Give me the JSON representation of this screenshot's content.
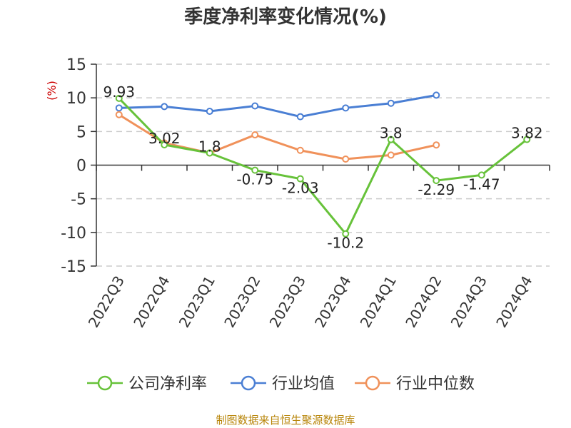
{
  "chart_data": {
    "type": "line",
    "title": "季度净利率变化情况(%)",
    "ylabel": "(%)",
    "ylim": [
      -15,
      15
    ],
    "yticks": [
      15,
      10,
      5,
      0,
      -5,
      -10,
      -15
    ],
    "grid": true,
    "legend_position": "bottom",
    "categories": [
      "2022Q3",
      "2022Q4",
      "2023Q1",
      "2023Q2",
      "2023Q3",
      "2023Q4",
      "2024Q1",
      "2024Q2",
      "2024Q3",
      "2024Q4"
    ],
    "series": [
      {
        "name": "公司净利率",
        "color": "#67c23a",
        "values": [
          9.93,
          3.02,
          1.8,
          -0.75,
          -2.03,
          -10.2,
          3.8,
          -2.29,
          -1.47,
          3.82
        ],
        "labels": [
          "9.93",
          "3.02",
          "1.8",
          "-0.75",
          "-2.03",
          "-10.2",
          "3.8",
          "-2.29",
          "-1.47",
          "3.82"
        ]
      },
      {
        "name": "行业均值",
        "color": "#4a7fd4",
        "values": [
          8.5,
          8.7,
          8.0,
          8.8,
          7.2,
          8.5,
          9.2,
          10.4,
          null,
          null
        ]
      },
      {
        "name": "行业中位数",
        "color": "#f0915a",
        "values": [
          7.5,
          3.3,
          1.8,
          4.5,
          2.2,
          0.9,
          1.5,
          3.0,
          null,
          null
        ]
      }
    ]
  },
  "source": "制图数据来自恒生聚源数据库",
  "colors": {
    "unit": "#cc0000",
    "source": "#b8860b",
    "axis": "#333333",
    "grid": "#cccccc"
  }
}
